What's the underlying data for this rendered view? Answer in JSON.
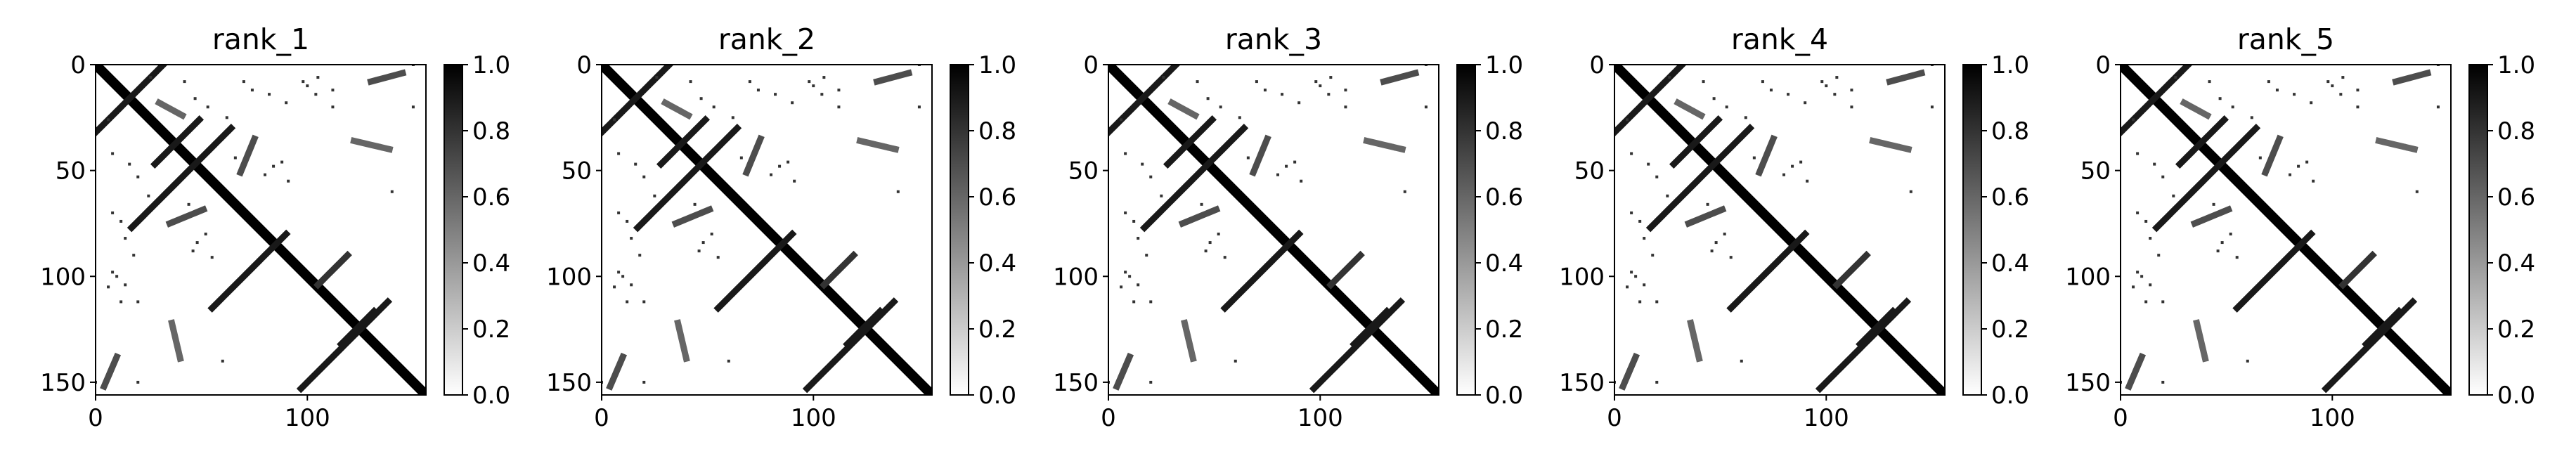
{
  "chart_data": [
    {
      "type": "heatmap",
      "title": "rank_1",
      "xlim": [
        0,
        156
      ],
      "ylim": [
        156,
        0
      ],
      "x_ticks": [
        0,
        100
      ],
      "y_ticks": [
        0,
        50,
        100,
        150
      ],
      "colormap": "gray_r",
      "colorbar": {
        "min": 0.0,
        "max": 1.0,
        "ticks": [
          "0.0",
          "0.2",
          "0.4",
          "0.6",
          "0.8",
          "1.0"
        ]
      },
      "grid": false
    },
    {
      "type": "heatmap",
      "title": "rank_2",
      "xlim": [
        0,
        156
      ],
      "ylim": [
        156,
        0
      ],
      "x_ticks": [
        0,
        100
      ],
      "y_ticks": [
        0,
        50,
        100,
        150
      ],
      "colormap": "gray_r",
      "colorbar": {
        "min": 0.0,
        "max": 1.0,
        "ticks": [
          "0.0",
          "0.2",
          "0.4",
          "0.6",
          "0.8",
          "1.0"
        ]
      },
      "grid": false
    },
    {
      "type": "heatmap",
      "title": "rank_3",
      "xlim": [
        0,
        156
      ],
      "ylim": [
        156,
        0
      ],
      "x_ticks": [
        0,
        100
      ],
      "y_ticks": [
        0,
        50,
        100,
        150
      ],
      "colormap": "gray_r",
      "colorbar": {
        "min": 0.0,
        "max": 1.0,
        "ticks": [
          "0.0",
          "0.2",
          "0.4",
          "0.6",
          "0.8",
          "1.0"
        ]
      },
      "grid": false
    },
    {
      "type": "heatmap",
      "title": "rank_4",
      "xlim": [
        0,
        156
      ],
      "ylim": [
        156,
        0
      ],
      "x_ticks": [
        0,
        100
      ],
      "y_ticks": [
        0,
        50,
        100,
        150
      ],
      "colormap": "gray_r",
      "colorbar": {
        "min": 0.0,
        "max": 1.0,
        "ticks": [
          "0.0",
          "0.2",
          "0.4",
          "0.6",
          "0.8",
          "1.0"
        ]
      },
      "grid": false
    },
    {
      "type": "heatmap",
      "title": "rank_5",
      "xlim": [
        0,
        156
      ],
      "ylim": [
        156,
        0
      ],
      "x_ticks": [
        0,
        100
      ],
      "y_ticks": [
        0,
        50,
        100,
        150
      ],
      "colormap": "gray_r",
      "colorbar": {
        "min": 0.0,
        "max": 1.0,
        "ticks": [
          "0.0",
          "0.2",
          "0.4",
          "0.6",
          "0.8",
          "1.0"
        ]
      },
      "grid": false
    }
  ],
  "contact_pattern": {
    "matrix_size": 156,
    "segments": [
      {
        "from": [
          0,
          0
        ],
        "to": [
          155,
          155
        ],
        "value": 1.0
      },
      {
        "from": [
          0,
          32
        ],
        "to": [
          32,
          0
        ],
        "value": 0.9
      },
      {
        "from": [
          17,
          77
        ],
        "to": [
          64,
          30
        ],
        "value": 0.9
      },
      {
        "from": [
          28,
          47
        ],
        "to": [
          49,
          26
        ],
        "value": 0.9
      },
      {
        "from": [
          55,
          115
        ],
        "to": [
          90,
          80
        ],
        "value": 0.9
      },
      {
        "from": [
          97,
          153
        ],
        "to": [
          138,
          112
        ],
        "value": 0.9
      },
      {
        "from": [
          116,
          132
        ],
        "to": [
          132,
          116
        ],
        "value": 0.9
      },
      {
        "from": [
          105,
          104
        ],
        "to": [
          119,
          90
        ],
        "value": 0.8
      },
      {
        "from": [
          130,
          8
        ],
        "to": [
          145,
          4
        ],
        "value": 0.7
      },
      {
        "from": [
          10,
          138
        ],
        "to": [
          4,
          152
        ],
        "value": 0.7
      },
      {
        "from": [
          75,
          35
        ],
        "to": [
          68,
          52
        ],
        "value": 0.7
      },
      {
        "from": [
          35,
          75
        ],
        "to": [
          52,
          68
        ],
        "value": 0.7
      },
      {
        "from": [
          30,
          18
        ],
        "to": [
          41,
          24
        ],
        "value": 0.6
      },
      {
        "from": [
          122,
          36
        ],
        "to": [
          139,
          40
        ],
        "value": 0.6
      },
      {
        "from": [
          36,
          122
        ],
        "to": [
          40,
          139
        ],
        "value": 0.6
      }
    ],
    "dots": [
      [
        47,
        16
      ],
      [
        53,
        20
      ],
      [
        62,
        25
      ],
      [
        70,
        8
      ],
      [
        74,
        12
      ],
      [
        82,
        14
      ],
      [
        90,
        18
      ],
      [
        98,
        8
      ],
      [
        105,
        6
      ],
      [
        112,
        12
      ],
      [
        16,
        47
      ],
      [
        20,
        53
      ],
      [
        25,
        62
      ],
      [
        8,
        70
      ],
      [
        12,
        74
      ],
      [
        14,
        82
      ],
      [
        18,
        90
      ],
      [
        8,
        98
      ],
      [
        6,
        105
      ],
      [
        12,
        112
      ],
      [
        80,
        52
      ],
      [
        84,
        48
      ],
      [
        88,
        46
      ],
      [
        91,
        55
      ],
      [
        52,
        80
      ],
      [
        48,
        84
      ],
      [
        46,
        88
      ],
      [
        55,
        91
      ],
      [
        10,
        100
      ],
      [
        14,
        104
      ],
      [
        20,
        112
      ],
      [
        100,
        10
      ],
      [
        104,
        14
      ],
      [
        112,
        20
      ],
      [
        140,
        60
      ],
      [
        60,
        140
      ],
      [
        150,
        0
      ],
      [
        0,
        150
      ],
      [
        150,
        20
      ],
      [
        20,
        150
      ],
      [
        26,
        6
      ],
      [
        6,
        26
      ],
      [
        42,
        8
      ],
      [
        8,
        42
      ],
      [
        66,
        44
      ],
      [
        44,
        66
      ]
    ]
  }
}
